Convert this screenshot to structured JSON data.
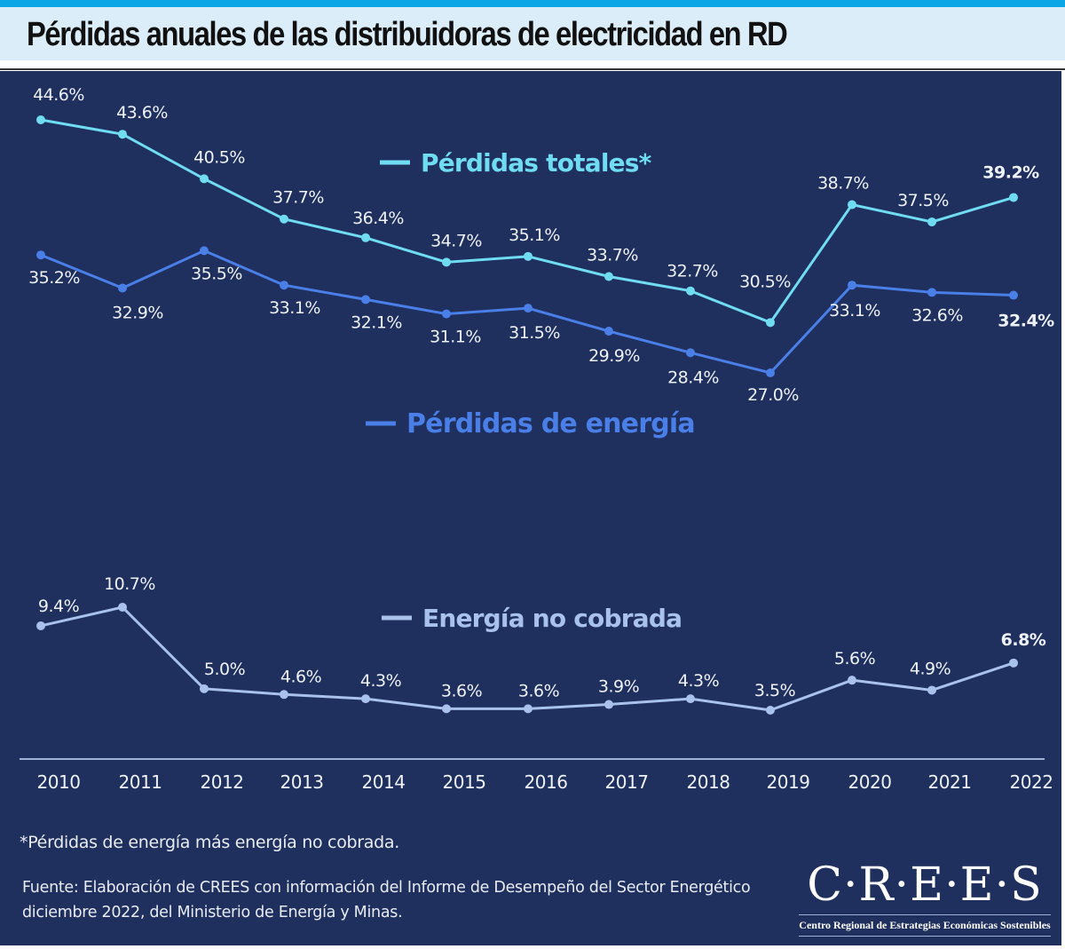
{
  "header": {
    "title": "Pérdidas anuales de las distribuidoras de electricidad en RD"
  },
  "chart_data": {
    "type": "line",
    "title": "Pérdidas anuales de las distribuidoras de electricidad en RD",
    "xlabel": "",
    "ylabel": "",
    "categories": [
      "2010",
      "2011",
      "2012",
      "2013",
      "2014",
      "2015",
      "2016",
      "2017",
      "2018",
      "2019",
      "2020",
      "2021",
      "2022"
    ],
    "grid": false,
    "series": [
      {
        "name": "Pérdidas totales*",
        "color": "#6fdcf2",
        "values": [
          44.6,
          43.6,
          40.5,
          37.7,
          36.4,
          34.7,
          35.1,
          33.7,
          32.7,
          30.5,
          38.7,
          37.5,
          39.2
        ],
        "labels": [
          "44.6%",
          "43.6%",
          "40.5%",
          "37.7%",
          "36.4%",
          "34.7%",
          "35.1%",
          "33.7%",
          "32.7%",
          "30.5%",
          "38.7%",
          "37.5%",
          "39.2%"
        ]
      },
      {
        "name": "Pérdidas de energía",
        "color": "#4a7fe8",
        "values": [
          35.2,
          32.9,
          35.5,
          33.1,
          32.1,
          31.1,
          31.5,
          29.9,
          28.4,
          27.0,
          33.1,
          32.6,
          32.4
        ],
        "labels": [
          "35.2%",
          "32.9%",
          "35.5%",
          "33.1%",
          "32.1%",
          "31.1%",
          "31.5%",
          "29.9%",
          "28.4%",
          "27.0%",
          "33.1%",
          "32.6%",
          "32.4%"
        ]
      },
      {
        "name": "Energía no cobrada",
        "color": "#a9c2ec",
        "values": [
          9.4,
          10.7,
          5.0,
          4.6,
          4.3,
          3.6,
          3.6,
          3.9,
          4.3,
          3.5,
          5.6,
          4.9,
          6.8
        ],
        "labels": [
          "9.4%",
          "10.7%",
          "5.0%",
          "4.6%",
          "4.3%",
          "3.6%",
          "3.6%",
          "3.9%",
          "4.3%",
          "3.5%",
          "5.6%",
          "4.9%",
          "6.8%"
        ]
      }
    ],
    "legend": [
      "Pérdidas totales*",
      "Pérdidas de energía",
      "Energía no cobrada"
    ],
    "legend_placement": "inline"
  },
  "footer": {
    "footnote": "*Pérdidas de energía más energía no cobrada.",
    "source_line1": "Fuente: Elaboración de CREES con información del Informe de Desempeño del Sector Energético",
    "source_line2": "diciembre 2022, del Ministerio de Energía y Minas.",
    "logo_main": "C·R·E·E·S",
    "logo_sub": "Centro Regional de Estrategias Económicas Sostenibles"
  },
  "colors": {
    "background": "#1f2f5e",
    "title_band": "#dcedfa",
    "top_bar": "#0aa6e6",
    "label_text": "#eef2fa"
  }
}
